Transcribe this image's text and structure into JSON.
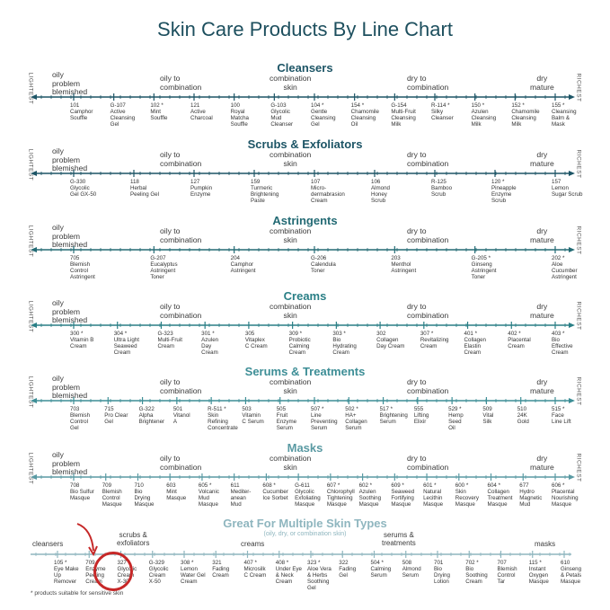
{
  "title": "Skin Care Products By Line Chart",
  "side_left": "LIGHTEST",
  "side_right": "RICHEST",
  "colors": {
    "title": "#1d4f5e",
    "cleansers": "#1d5566",
    "scrubs": "#1d5566",
    "astringents": "#236a74",
    "creams": "#2a7f86",
    "serums": "#3d8e96",
    "masks": "#5a9aa3",
    "multi": "#8fb6bf",
    "circle": "#c62828"
  },
  "sections": [
    {
      "key": "cleansers",
      "title": "Cleansers",
      "skin_labels": [
        "oily\nproblem\nblemished",
        "oily to\ncombination",
        "combination\nskin",
        "dry to\ncombination",
        "dry\nmature"
      ],
      "products": [
        "101\nCamphor\nSouffle",
        "G-107\nActive\nCleansing\nGel",
        "102 *\nMint\nSouffle",
        "121\nActive\nCharcoal",
        "100\nRoyal\nMatcha\nSouffle",
        "G-103\nGlycolic\nMud\nCleanser",
        "104 *\nGentle\nCleansing\nGel",
        "154 *\nChamomile\nCleansing\nOil",
        "G-154\nMulti-Fruit\nCleansing\nMilk",
        "R-114 *\nSilky\nCleanser",
        "150 *\nAzulen\nCleansing\nMilk",
        "152 *\nChamomile\nCleansing\nMilk",
        "155 *\nCleansing\nBalm &\nMask"
      ]
    },
    {
      "key": "scrubs",
      "title": "Scrubs & Exfoliators",
      "skin_labels": [
        "oily\nproblem\nblemished",
        "oily to\ncombination",
        "combination\nskin",
        "dry to\ncombination",
        "dry\nmature"
      ],
      "products": [
        "G-330\nGlycolic\nGel GX-50",
        "118\nHerbal\nPeeling Gel",
        "127\nPumpkin\nEnzyme",
        "159\nTurmeric\nBrightening\nPaste",
        "107\nMicro-\ndermabrasion\nCream",
        "106\nAlmond\nHoney\nScrub",
        "R-125\nBamboo\nScrub",
        "120 *\nPineapple\nEnzyme\nScrub",
        "157\nLemon\nSugar Scrub"
      ]
    },
    {
      "key": "astringents",
      "title": "Astringents",
      "skin_labels": [
        "oily\nproblem\nblemished",
        "oily to\ncombination",
        "combination\nskin",
        "dry to\ncombination",
        "dry\nmature"
      ],
      "products": [
        "705\nBlemish\nControl\nAstringent",
        "G-207\nEucalyptus\nAstringent\nToner",
        "204\nCamphor\nAstringent",
        "G-206\nCalendula\nToner",
        "203\nMenthol\nAstringent",
        "G-205 *\nGinseng\nAstringent\nToner",
        "202 *\nAloe\nCucumber\nAstringent"
      ]
    },
    {
      "key": "creams",
      "title": "Creams",
      "skin_labels": [
        "oily\nproblem\nblemished",
        "oily to\ncombination",
        "combination\nskin",
        "dry to\ncombination",
        "dry\nmature"
      ],
      "products": [
        "300 *\nVitamin B\nCream",
        "304 *\nUltra Light\nSeaweed\nCream",
        "G-323\nMulti-Fruit\nCream",
        "301 *\nAzulen\nDay\nCream",
        "305\nVitaplex\nC Cream",
        "309 *\nProbiotic\nCalming\nCream",
        "303 *\nBio\nHydrating\nCream",
        "302\nCollagen\nDay Cream",
        "307 *\nRevitalizing\nCream",
        "401 *\nCollagen\nElastin\nCream",
        "402 *\nPlacental\nCream",
        "403 *\nBio\nEffective\nCream"
      ]
    },
    {
      "key": "serums",
      "title": "Serums & Treatments",
      "skin_labels": [
        "oily\nproblem\nblemished",
        "oily to\ncombination",
        "combination\nskin",
        "dry to\ncombination",
        "dry\nmature"
      ],
      "products": [
        "703\nBlemish\nControl\nGel",
        "715\nPro Clear\nGel",
        "G-322\nAlpha\nBrightener",
        "501\nVitanol\nA",
        "R-511 *\nSkin\nRefining\nConcentrate",
        "503\nVitamin\nC Serum",
        "505\nFruit\nEnzyme\nSerum",
        "507 *\nLine\nPreventing\nSerum",
        "502 *\nHA+\nCollagen\nSerum",
        "517 *\nBrightening\nSerum",
        "555\nLifting\nElixir",
        "529 *\nHemp\nSeed\nOil",
        "509\nVital\nSilk",
        "510\n24K\nGold",
        "515 *\nFace\nLine Lift"
      ]
    },
    {
      "key": "masks",
      "title": "Masks",
      "skin_labels": [
        "oily\nproblem\nblemished",
        "oily to\ncombination",
        "combination\nskin",
        "dry to\ncombination",
        "dry\nmature"
      ],
      "products": [
        "708\nBio Sulfur\nMasque",
        "709\nBlemish\nControl\nMasque",
        "710\nBio\nDrying\nMasque",
        "603\nMint\nMasque",
        "605 *\nVolcanic\nMud\nMasque",
        "611\nMediter-\nanean\nMud",
        "608 *\nCucumber\nIce Sorbet",
        "G-611\nGlycolic\nExfoliating\nMasque",
        "607 *\nChlorophyll\nTightening\nMasque",
        "602 *\nAzulen\nSoothing\nMasque",
        "609 *\nSeaweed\nFortifying\nMasque",
        "601 *\nNatural\nLecithin\nMasque",
        "600 *\nSkin\nRecovery\nMasque",
        "604 *\nCollagen\nTreatment\nMasque",
        "677\nHydro\nMagnetic\nMud",
        "606 *\nPlacental\nNourishing\nMasque"
      ]
    }
  ],
  "multi": {
    "title": "Great For Multiple Skin Types",
    "subtitle": "(oily, dry, or combination skin)",
    "labels": [
      "cleansers",
      "scrubs &\nexfoliators",
      "creams",
      "serums &\ntreatments",
      "masks"
    ],
    "products": [
      "105 *\nEye Make\nUp\nRemover",
      "709 *\nEnzyme\nPeeling\nCream",
      "327\nGlycolic\nCream\nX-30",
      "G-329\nGlycolic\nCream\nX-50",
      "308 *\nLemon\nWater Gel\nCream",
      "321\nFading\nCream",
      "407 *\nMicrosilk\nC Cream",
      "408 *\nUnder Eye\n& Neck\nCream",
      "323 *\nAloe Vera\n& Herbs\nSoothing\nGel",
      "322\nFading\nGel",
      "504 *\nCalming\nSerum",
      "508\nAlmond\nSerum",
      "701\nBio\nDrying\nLotion",
      "702 *\nBio\nSoothing\nCream",
      "707\nBlemish\nControl\nTar",
      "115 *\nInstant\nOxygen\nMasque",
      "610\nGinseng\n& Petals\nMasque"
    ]
  },
  "footnote": "* products suitable for sensitive skin"
}
